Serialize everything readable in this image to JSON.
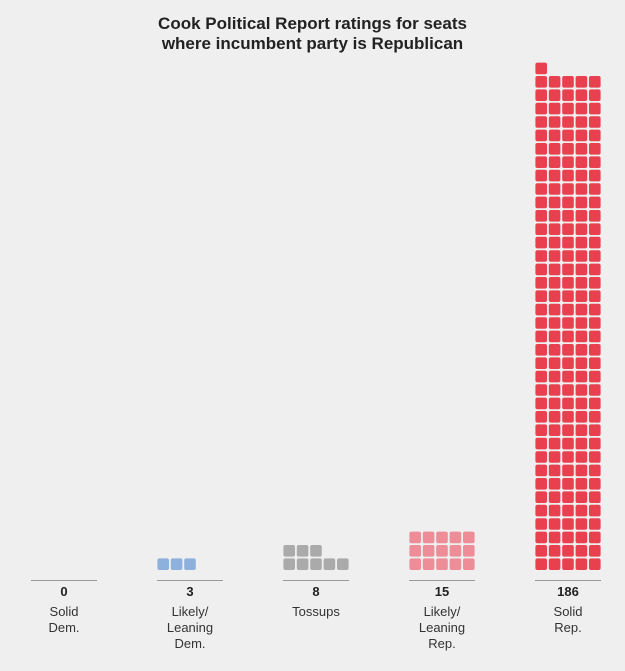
{
  "chart_data": {
    "type": "waffle",
    "title_lines": [
      "Cook Political Report ratings for seats",
      "where incumbent party is Republican"
    ],
    "categories": [
      {
        "name_lines": [
          "Solid",
          "Dem."
        ],
        "value": 0,
        "value_label": "0",
        "color": "#4e7fc0"
      },
      {
        "name_lines": [
          "Likely/",
          "Leaning",
          "Dem."
        ],
        "value": 3,
        "value_label": "3",
        "color": "#8eb0dc"
      },
      {
        "name_lines": [
          "Tossups"
        ],
        "value": 8,
        "value_label": "8",
        "color": "#aaaaaa"
      },
      {
        "name_lines": [
          "Likely/",
          "Leaning",
          "Rep."
        ],
        "value": 15,
        "value_label": "15",
        "color": "#ee8d98"
      },
      {
        "name_lines": [
          "Solid",
          "Rep."
        ],
        "value": 186,
        "value_label": "186",
        "color": "#e8404f"
      }
    ],
    "units_per_row": 5
  }
}
